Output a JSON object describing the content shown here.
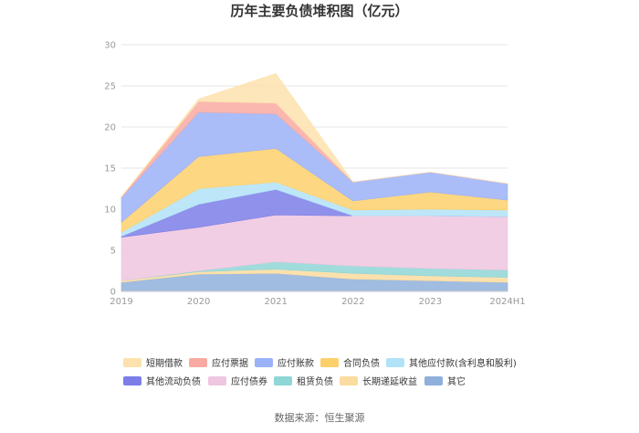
{
  "chart_data": {
    "type": "area",
    "stacked": true,
    "title": "历年主要负债堆积图（亿元）",
    "categories": [
      "2019",
      "2020",
      "2021",
      "2022",
      "2023",
      "2024H1"
    ],
    "ylim": [
      0,
      30
    ],
    "yticks": [
      "0",
      "5",
      "10",
      "15",
      "20",
      "25",
      "30"
    ],
    "grid": true,
    "legend_position": "bottom",
    "series": [
      {
        "name": "其它",
        "color": "#8fb0db",
        "values": [
          1.1,
          2.1,
          2.2,
          1.5,
          1.3,
          1.1
        ]
      },
      {
        "name": "长期递延收益",
        "color": "#fbdca0",
        "values": [
          0.2,
          0.3,
          0.5,
          0.7,
          0.6,
          0.6
        ]
      },
      {
        "name": "租赁负债",
        "color": "#8fd6d6",
        "values": [
          0.0,
          0.1,
          0.9,
          0.9,
          0.9,
          0.9
        ]
      },
      {
        "name": "应付债券",
        "color": "#efc6df",
        "values": [
          5.3,
          5.3,
          5.7,
          6.1,
          6.4,
          6.5
        ]
      },
      {
        "name": "其他流动负债",
        "color": "#7c7ee8",
        "values": [
          0.1,
          2.8,
          3.1,
          0.0,
          0.0,
          0.0
        ]
      },
      {
        "name": "其他应付款(含利息和股利)",
        "color": "#b1e3f8",
        "values": [
          0.5,
          1.9,
          0.9,
          0.7,
          0.8,
          0.8
        ]
      },
      {
        "name": "合同负债",
        "color": "#fdd06b",
        "values": [
          1.2,
          3.9,
          4.1,
          1.1,
          2.1,
          1.2
        ]
      },
      {
        "name": "应付账款",
        "color": "#9bb2f8",
        "values": [
          3.0,
          5.4,
          4.2,
          2.3,
          2.4,
          2.0
        ]
      },
      {
        "name": "应付票据",
        "color": "#f8aaa2",
        "values": [
          0.1,
          1.3,
          1.3,
          0.0,
          0.0,
          0.0
        ]
      },
      {
        "name": "短期借款",
        "color": "#fde2ad",
        "values": [
          0.0,
          0.3,
          3.6,
          0.0,
          0.0,
          0.0
        ]
      }
    ],
    "legend_order": [
      "短期借款",
      "应付票据",
      "应付账款",
      "合同负债",
      "其他应付款(含利息和股利)",
      "其他流动负债",
      "应付债券",
      "租赁负债",
      "长期递延收益",
      "其它"
    ]
  },
  "source": "数据来源：恒生聚源"
}
